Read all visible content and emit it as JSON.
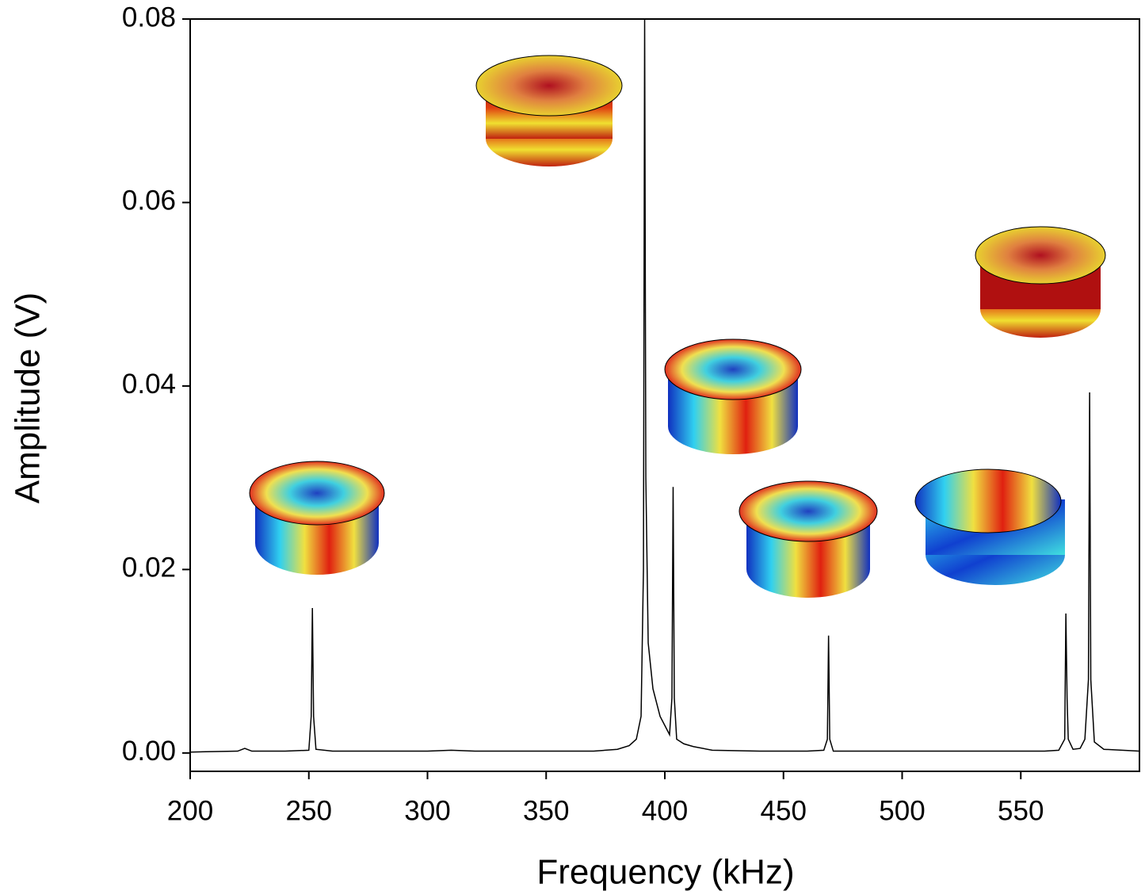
{
  "chart_data": {
    "type": "line",
    "xlabel": "Frequency (kHz)",
    "ylabel": "Amplitude (V)",
    "x": [
      200,
      220,
      223,
      226,
      240,
      250,
      251,
      251.5,
      252,
      253,
      260,
      300,
      310,
      320,
      370,
      380,
      385,
      388,
      390,
      391,
      391.5,
      392,
      393,
      395,
      398,
      400,
      402,
      403,
      403.5,
      404,
      405,
      408,
      412,
      420,
      440,
      460,
      467,
      468.5,
      469,
      469.5,
      471,
      500,
      560,
      566,
      568.5,
      569,
      569.5,
      570,
      572,
      575,
      577,
      578.5,
      579,
      579.5,
      581,
      585,
      600
    ],
    "values": [
      0.0001,
      0.0002,
      0.0005,
      0.0002,
      0.0002,
      0.0003,
      0.004,
      0.0158,
      0.004,
      0.0004,
      0.0002,
      0.0002,
      0.0003,
      0.0002,
      0.0002,
      0.0004,
      0.0008,
      0.0015,
      0.004,
      0.02,
      0.08,
      0.03,
      0.012,
      0.007,
      0.004,
      0.003,
      0.002,
      0.006,
      0.029,
      0.006,
      0.0015,
      0.001,
      0.0007,
      0.0003,
      0.0002,
      0.0002,
      0.0003,
      0.0015,
      0.0128,
      0.0015,
      0.0002,
      0.0002,
      0.0002,
      0.0003,
      0.0015,
      0.0152,
      0.006,
      0.0015,
      0.0004,
      0.0005,
      0.0015,
      0.008,
      0.0393,
      0.008,
      0.0012,
      0.0004,
      0.0002
    ],
    "color": "#000000",
    "xlim": [
      200,
      600
    ],
    "xticks": [
      200,
      250,
      300,
      350,
      400,
      450,
      500,
      550
    ],
    "ylim": [
      -0.002,
      0.08
    ],
    "yticks": [
      {
        "value": 0,
        "label": "0.00"
      },
      0.02,
      0.04,
      0.06,
      0.08
    ]
  }
}
